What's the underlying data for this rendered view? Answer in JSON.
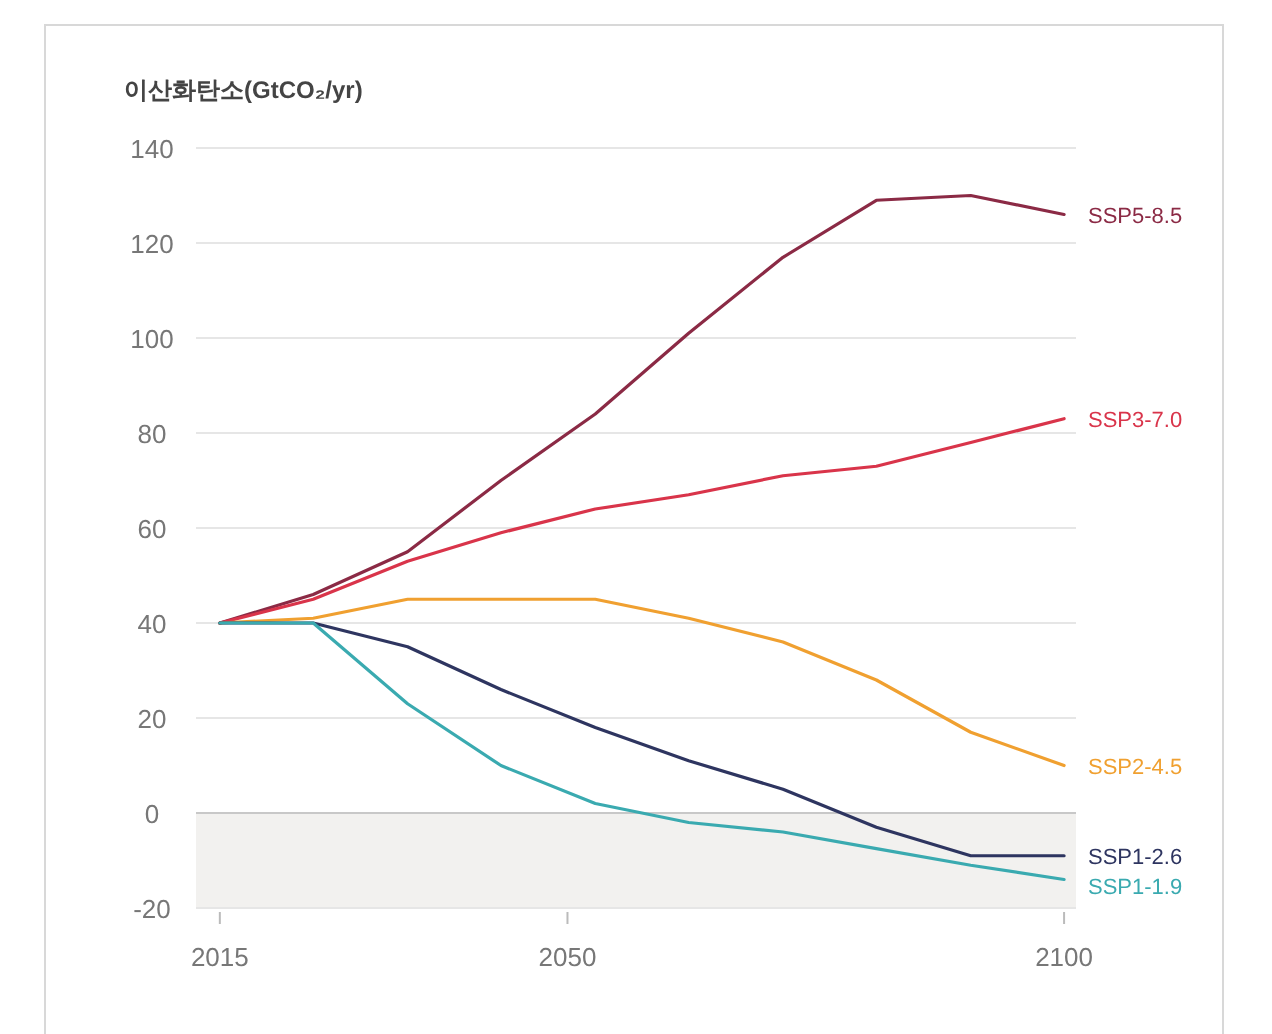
{
  "chart_data": {
    "type": "line",
    "ylabel": "이산화탄소(GtCO₂/yr)",
    "x": [
      2015,
      2024.4,
      2033.9,
      2043.3,
      2052.8,
      2062.2,
      2071.7,
      2081.1,
      2090.6,
      2100
    ],
    "series": [
      {
        "name": "SSP5-8.5",
        "color": "#8b2a45",
        "values": [
          40,
          46,
          55,
          70,
          84,
          101,
          117,
          129,
          130,
          126
        ]
      },
      {
        "name": "SSP3-7.0",
        "color": "#d9344a",
        "values": [
          40,
          45,
          53,
          59,
          64,
          67,
          71,
          73,
          78,
          83
        ]
      },
      {
        "name": "SSP2-4.5",
        "color": "#f0a030",
        "values": [
          40,
          41,
          45,
          45,
          45,
          41,
          36,
          28,
          17,
          10
        ]
      },
      {
        "name": "SSP1-2.6",
        "color": "#2e3560",
        "values": [
          40,
          40,
          35,
          26,
          18,
          11,
          5,
          -3,
          -9,
          -9
        ]
      },
      {
        "name": "SSP1-1.9",
        "color": "#3aaab0",
        "values": [
          40,
          40,
          23,
          10,
          2,
          -2,
          -4,
          -7.5,
          -11,
          -14
        ]
      }
    ],
    "xlim": [
      2012.6,
      2101.2
    ],
    "xticks": [
      2015,
      2050,
      2100
    ],
    "ylim": [
      -20,
      140
    ],
    "yticks": [
      -20,
      0,
      20,
      40,
      60,
      80,
      100,
      120,
      140
    ],
    "bands": [
      {
        "axis": "y",
        "from": -20,
        "to": 0,
        "color": "#f2f1ef"
      }
    ],
    "grid": "y",
    "legend": false,
    "marker": "none",
    "line_style": "solid"
  }
}
